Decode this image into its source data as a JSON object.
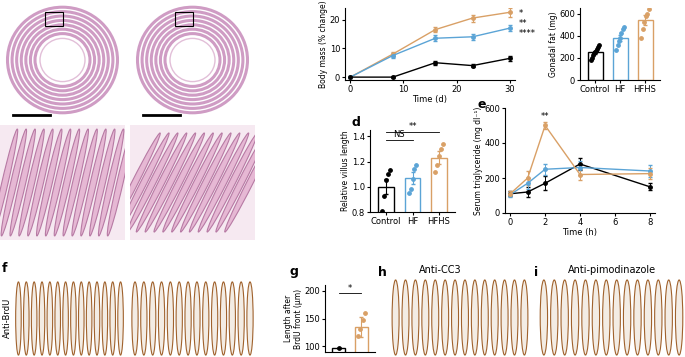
{
  "panel_labels": [
    "d",
    "e",
    "f",
    "g",
    "h",
    "i"
  ],
  "images": [
    {
      "title": "Anti-CC3"
    },
    {
      "title": "Anti-pimodinazole"
    }
  ],
  "image_side_label": "Anti-BrdU",
  "chart_data": [
    {
      "type": "line",
      "y_label": "Body mass (% change)",
      "x_label": "Time (d)",
      "xlim": [
        -1,
        31
      ],
      "xticks": [
        0,
        10,
        20,
        30
      ],
      "ylim": [
        -1,
        24
      ],
      "yticks": [
        0,
        10,
        20
      ],
      "marker": "o",
      "series": [
        {
          "color": "#d9a066",
          "x": [
            0,
            8,
            16,
            23,
            30
          ],
          "values": [
            0,
            8,
            16.5,
            20.5,
            22.5
          ],
          "errors": [
            0.3,
            0.8,
            0.9,
            1.2,
            1.5
          ]
        },
        {
          "color": "#5ba4d6",
          "x": [
            0,
            8,
            16,
            23,
            30
          ],
          "values": [
            0,
            7.5,
            13.5,
            14,
            17
          ],
          "errors": [
            0.3,
            0.9,
            1.0,
            1.0,
            1.0
          ]
        },
        {
          "color": "#000000",
          "x": [
            0,
            8,
            16,
            23,
            30
          ],
          "values": [
            0,
            0,
            5,
            4,
            6.5
          ],
          "errors": [
            0.2,
            0.3,
            0.7,
            0.6,
            0.8
          ]
        }
      ],
      "annotations": [
        "*",
        "**",
        "****"
      ]
    },
    {
      "type": "bar",
      "y_label": "Gonadal fat (mg)",
      "categories": [
        "Control",
        "HF",
        "HFHS"
      ],
      "values": [
        250,
        380,
        540
      ],
      "errors": [
        15,
        30,
        45
      ],
      "colors": [
        "#000000",
        "#5ba4d6",
        "#d9a066"
      ],
      "points": [
        [
          180,
          200,
          230,
          240,
          250,
          260,
          280,
          300,
          320
        ],
        [
          270,
          320,
          350,
          380,
          420,
          460,
          480
        ],
        [
          380,
          460,
          520,
          580,
          600,
          640
        ]
      ],
      "ylim": [
        0,
        650
      ],
      "yticks": [
        0,
        200,
        400,
        600
      ],
      "comparisons": []
    },
    {
      "type": "bar",
      "y_label": "Relative villus length",
      "categories": [
        "Control",
        "HF",
        "HFHS"
      ],
      "values": [
        1.0,
        1.07,
        1.23
      ],
      "errors": [
        0.06,
        0.05,
        0.05
      ],
      "colors": [
        "#000000",
        "#5ba4d6",
        "#d9a066"
      ],
      "points": [
        [
          0.81,
          0.93,
          1.05,
          1.1,
          1.13
        ],
        [
          0.95,
          0.98,
          1.06,
          1.14,
          1.17
        ],
        [
          1.12,
          1.17,
          1.24,
          1.3,
          1.34
        ]
      ],
      "ylim": [
        0.8,
        1.45
      ],
      "yticks": [
        0.8,
        1.0,
        1.2,
        1.4
      ],
      "comparisons": [
        {
          "text": "NS",
          "groups": [
            0,
            1
          ]
        },
        {
          "text": "**",
          "groups": [
            0,
            2
          ]
        }
      ]
    },
    {
      "type": "line",
      "y_label": "Serum triglyceride (mg dl⁻¹)",
      "x_label": "Time (h)",
      "xlim": [
        -0.3,
        8.3
      ],
      "xticks": [
        0,
        2,
        4,
        6,
        8
      ],
      "ylim": [
        0,
        600
      ],
      "yticks": [
        0,
        200,
        400,
        600
      ],
      "marker": "o",
      "series": [
        {
          "color": "#000000",
          "x": [
            0,
            1,
            2,
            4,
            8
          ],
          "values": [
            110,
            120,
            170,
            280,
            150
          ],
          "errors": [
            15,
            30,
            40,
            35,
            20
          ]
        },
        {
          "color": "#5ba4d6",
          "x": [
            0,
            1,
            2,
            4,
            8
          ],
          "values": [
            105,
            170,
            250,
            260,
            240
          ],
          "errors": [
            15,
            30,
            30,
            40,
            35
          ]
        },
        {
          "color": "#d9a066",
          "x": [
            0,
            1,
            2,
            4,
            8
          ],
          "values": [
            110,
            200,
            500,
            220,
            225
          ],
          "errors": [
            15,
            40,
            20,
            30,
            30
          ]
        }
      ],
      "annotations": [
        {
          "text": "**",
          "x": 2
        }
      ]
    },
    {
      "type": "bar",
      "y_label": "Length after\nBrdU front (μm)",
      "categories": [
        null,
        null
      ],
      "values": [
        97,
        135
      ],
      "errors": [
        0,
        18
      ],
      "colors": [
        "#000000",
        "#d9a066"
      ],
      "points": [
        [
          97
        ],
        [
          118,
          132,
          148,
          160
        ]
      ],
      "ylim": [
        90,
        210
      ],
      "yticks": [
        100,
        150,
        200
      ],
      "comparisons": [
        {
          "text": "*",
          "groups": [
            0,
            1
          ]
        }
      ]
    }
  ]
}
